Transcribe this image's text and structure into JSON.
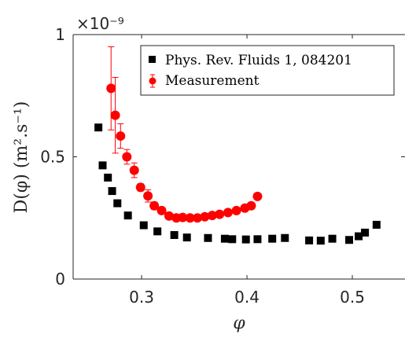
{
  "chart_data": {
    "type": "scatter",
    "xlabel": "φ",
    "ylabel": "D(φ)  (m².s⁻¹)",
    "y_multiplier_label": "×10⁻⁹",
    "xlim": [
      0.235,
      0.55
    ],
    "ylim": [
      0,
      1
    ],
    "xticks": [
      0.3,
      0.4,
      0.5
    ],
    "xtick_labels": [
      "0.3",
      "0.4",
      "0.5"
    ],
    "yticks": [
      0,
      0.5,
      1
    ],
    "ytick_labels": [
      "0",
      "0.5",
      "1"
    ],
    "legend_position": "top-right",
    "series": [
      {
        "name": "Phys. Rev. Fluids 1, 084201",
        "marker": "square",
        "color": "#000000",
        "x": [
          0.259,
          0.263,
          0.268,
          0.272,
          0.277,
          0.287,
          0.302,
          0.315,
          0.331,
          0.343,
          0.363,
          0.379,
          0.386,
          0.399,
          0.41,
          0.424,
          0.436,
          0.459,
          0.47,
          0.481,
          0.497,
          0.506,
          0.512,
          0.523
        ],
        "y": [
          0.62,
          0.465,
          0.415,
          0.36,
          0.31,
          0.26,
          0.22,
          0.195,
          0.18,
          0.17,
          0.168,
          0.165,
          0.163,
          0.162,
          0.163,
          0.165,
          0.168,
          0.158,
          0.157,
          0.165,
          0.16,
          0.175,
          0.19,
          0.222
        ]
      },
      {
        "name": "Measurement",
        "marker": "circle",
        "color": "#ff0000",
        "x": [
          0.271,
          0.275,
          0.28,
          0.286,
          0.293,
          0.299,
          0.306,
          0.312,
          0.319,
          0.326,
          0.333,
          0.339,
          0.346,
          0.353,
          0.36,
          0.367,
          0.374,
          0.382,
          0.39,
          0.398,
          0.404,
          0.41
        ],
        "y": [
          0.78,
          0.67,
          0.585,
          0.5,
          0.445,
          0.375,
          0.34,
          0.3,
          0.28,
          0.258,
          0.25,
          0.252,
          0.25,
          0.25,
          0.255,
          0.26,
          0.265,
          0.272,
          0.28,
          0.29,
          0.3,
          0.338
        ],
        "err": [
          0.17,
          0.155,
          0.05,
          0.03,
          0.03,
          0.015,
          0.025,
          0.015,
          0.012,
          0.01,
          0.008,
          0.008,
          0.008,
          0.008,
          0.008,
          0.008,
          0.008,
          0.008,
          0.008,
          0.008,
          0.01,
          0.012
        ]
      }
    ]
  }
}
